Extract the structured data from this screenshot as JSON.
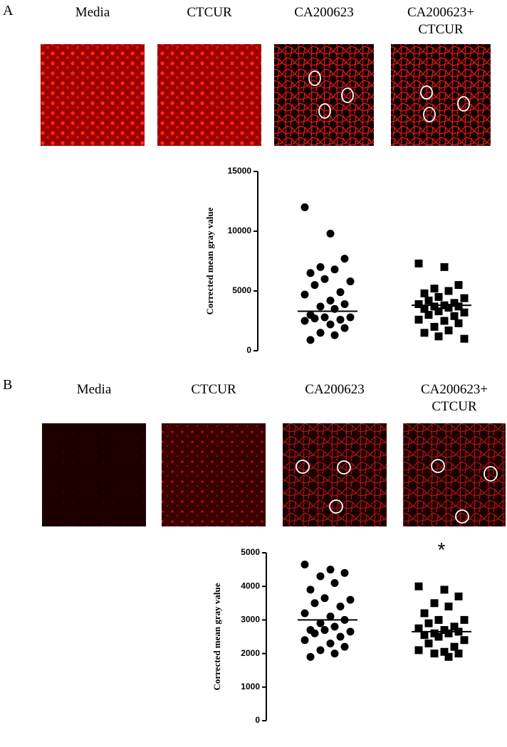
{
  "panels": [
    {
      "label": "A",
      "images": [
        "Media",
        "CTCUR",
        "CA200623",
        "CA200623+ CTCUR"
      ]
    },
    {
      "label": "B",
      "images": [
        "Media",
        "CTCUR",
        "CA200623",
        "CA200623+ CTCUR"
      ]
    }
  ],
  "chart_data": [
    {
      "type": "scatter",
      "ylabel": "Corrected mean gray value",
      "ylim": [
        0,
        15000
      ],
      "yticks": [
        0,
        5000,
        10000,
        15000
      ],
      "categories": [
        null,
        null
      ],
      "groups": [
        {
          "marker": "circle",
          "color": "#000000",
          "median": 3300,
          "values": [
            12000,
            9800,
            7700,
            7000,
            6800,
            6500,
            6000,
            5800,
            5500,
            4900,
            4700,
            4200,
            3900,
            3700,
            3500,
            3000,
            2800,
            2800,
            2700,
            2600,
            2500,
            2200,
            1900,
            1500,
            1300,
            900
          ]
        },
        {
          "marker": "square",
          "color": "#000000",
          "median": 3800,
          "values": [
            7300,
            7000,
            5500,
            5200,
            5000,
            4800,
            4500,
            4400,
            4200,
            4000,
            3900,
            3800,
            3700,
            3700,
            3600,
            3500,
            3300,
            3200,
            3000,
            2900,
            2600,
            2500,
            2300,
            2000,
            1700,
            1500,
            1200,
            1000
          ]
        }
      ]
    },
    {
      "type": "scatter",
      "ylabel": "Corrected mean gray value",
      "ylim": [
        0,
        5000
      ],
      "yticks": [
        0,
        1000,
        2000,
        3000,
        4000,
        5000
      ],
      "categories": [
        null,
        null
      ],
      "annotation": "*",
      "groups": [
        {
          "marker": "circle",
          "color": "#000000",
          "median": 3000,
          "values": [
            4650,
            4500,
            4400,
            4300,
            4100,
            3900,
            3650,
            3600,
            3500,
            3400,
            3200,
            3100,
            3000,
            2900,
            2800,
            2700,
            2700,
            2650,
            2600,
            2500,
            2400,
            2300,
            2200,
            2100,
            2000,
            1900
          ]
        },
        {
          "marker": "square",
          "color": "#000000",
          "median": 2650,
          "values": [
            4000,
            3900,
            3700,
            3500,
            3400,
            3200,
            3000,
            3000,
            2900,
            2800,
            2750,
            2700,
            2650,
            2600,
            2600,
            2550,
            2500,
            2400,
            2300,
            2200,
            2100,
            2050,
            2000,
            2000,
            1900
          ]
        }
      ]
    }
  ]
}
